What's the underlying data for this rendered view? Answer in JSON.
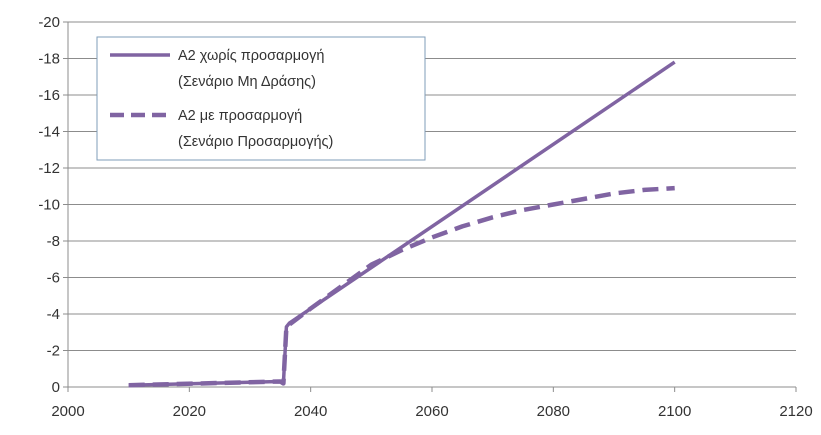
{
  "chart_data": {
    "type": "line",
    "title": "",
    "xlabel": "",
    "ylabel": "",
    "xlim": [
      2000,
      2120
    ],
    "ylim": [
      0,
      -20
    ],
    "y_axis_reversed": true,
    "x_ticks": [
      2000,
      2020,
      2040,
      2060,
      2080,
      2100,
      2120
    ],
    "y_ticks": [
      0,
      -2,
      -4,
      -6,
      -8,
      -10,
      -12,
      -14,
      -16,
      -18,
      -20
    ],
    "x_tick_labels": [
      "2000",
      "2020",
      "2040",
      "2060",
      "2080",
      "2100",
      "2120"
    ],
    "y_tick_labels": [
      "0",
      "-2",
      "-4",
      "-6",
      "-8",
      "-10",
      "-12",
      "-14",
      "-16",
      "-18",
      "-20"
    ],
    "grid": "horizontal",
    "legend_position": "top-left",
    "series": [
      {
        "name": [
          "A2 χωρίς προσαρμογή",
          "(Σενάριο Μη Δράσης)"
        ],
        "style": "solid",
        "color": "#8064a2",
        "points": [
          [
            2010,
            -0.1
          ],
          [
            2035,
            -0.3
          ],
          [
            2035.5,
            -0.2
          ],
          [
            2036,
            -3.3
          ],
          [
            2036.5,
            -3.5
          ],
          [
            2100,
            -17.8
          ]
        ]
      },
      {
        "name": [
          "A2 με προσαρμογή",
          "(Σενάριο Προσαρμογής)"
        ],
        "style": "dashed",
        "color": "#8064a2",
        "points": [
          [
            2010,
            -0.1
          ],
          [
            2035,
            -0.3
          ],
          [
            2035.5,
            -0.2
          ],
          [
            2036,
            -3.3
          ],
          [
            2040,
            -4.3
          ],
          [
            2045,
            -5.5
          ],
          [
            2050,
            -6.7
          ],
          [
            2055,
            -7.5
          ],
          [
            2060,
            -8.2
          ],
          [
            2065,
            -8.8
          ],
          [
            2070,
            -9.3
          ],
          [
            2075,
            -9.7
          ],
          [
            2080,
            -10.0
          ],
          [
            2085,
            -10.3
          ],
          [
            2090,
            -10.6
          ],
          [
            2095,
            -10.8
          ],
          [
            2100,
            -10.9
          ]
        ]
      }
    ]
  }
}
